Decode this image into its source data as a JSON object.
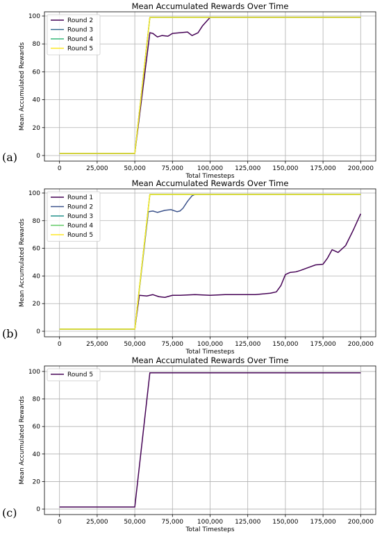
{
  "panels": [
    {
      "letter": "(a)"
    },
    {
      "letter": "(b)"
    },
    {
      "letter": "(c)"
    }
  ],
  "chart_data": [
    {
      "type": "line",
      "title": "Mean Accumulated Rewards Over Time",
      "xlabel": "Total Timesteps",
      "ylabel": "Mean Accumulated Rewards",
      "xlim": [
        -10000,
        210000
      ],
      "ylim": [
        -4,
        103
      ],
      "xticks": [
        0,
        25000,
        50000,
        75000,
        100000,
        125000,
        150000,
        175000,
        200000
      ],
      "xtick_labels": [
        "0",
        "25,000",
        "50,000",
        "75,000",
        "100,000",
        "125,000",
        "150,000",
        "175,000",
        "200,000"
      ],
      "yticks": [
        0,
        20,
        40,
        60,
        80,
        100
      ],
      "ytick_labels": [
        "0",
        "20",
        "40",
        "60",
        "80",
        "100"
      ],
      "grid": true,
      "legend_position": "top-left",
      "series": [
        {
          "name": "Round 2",
          "color": "#440154",
          "x": [
            0,
            50000,
            60000,
            62000,
            65000,
            68000,
            72000,
            75000,
            80000,
            85000,
            88000,
            92000,
            95000,
            100000,
            200000
          ],
          "y": [
            1.5,
            1.5,
            88,
            87.5,
            85,
            86,
            85.5,
            87.5,
            88,
            88.5,
            86,
            88,
            93,
            99,
            99
          ]
        },
        {
          "name": "Round 3",
          "color": "#31688e",
          "x": [
            0,
            50000,
            60000,
            200000
          ],
          "y": [
            1.5,
            1.5,
            99,
            99
          ]
        },
        {
          "name": "Round 4",
          "color": "#35b779",
          "x": [
            0,
            50000,
            60000,
            200000
          ],
          "y": [
            1.5,
            1.5,
            99,
            99
          ]
        },
        {
          "name": "Round 5",
          "color": "#fde725",
          "x": [
            0,
            50000,
            60000,
            200000
          ],
          "y": [
            1.5,
            1.5,
            99,
            99
          ]
        }
      ]
    },
    {
      "type": "line",
      "title": "Mean Accumulated Rewards Over Time",
      "xlabel": "Total Timesteps",
      "ylabel": "Mean Accumulated Rewards",
      "xlim": [
        -10000,
        210000
      ],
      "ylim": [
        -4,
        103
      ],
      "xticks": [
        0,
        25000,
        50000,
        75000,
        100000,
        125000,
        150000,
        175000,
        200000
      ],
      "xtick_labels": [
        "0",
        "25,000",
        "50,000",
        "75,000",
        "100,000",
        "125,000",
        "150,000",
        "175,000",
        "200,000"
      ],
      "yticks": [
        0,
        20,
        40,
        60,
        80,
        100
      ],
      "ytick_labels": [
        "0",
        "20",
        "40",
        "60",
        "80",
        "100"
      ],
      "grid": true,
      "legend_position": "top-left",
      "series": [
        {
          "name": "Round 1",
          "color": "#440154",
          "x": [
            0,
            50000,
            53000,
            58000,
            62000,
            66000,
            70000,
            75000,
            80000,
            90000,
            100000,
            110000,
            120000,
            130000,
            135000,
            140000,
            144000,
            147000,
            150000,
            153000,
            157000,
            160000,
            165000,
            170000,
            175000,
            178000,
            181000,
            185000,
            190000,
            195000,
            200000
          ],
          "y": [
            1.5,
            1.5,
            26,
            25.5,
            26.5,
            25,
            24.5,
            26,
            26,
            26.5,
            26,
            26.5,
            26.5,
            26.5,
            27,
            27.5,
            28.5,
            33,
            41,
            42.5,
            43,
            44,
            46,
            48,
            48.5,
            53,
            59,
            57,
            62,
            73,
            85
          ]
        },
        {
          "name": "Round 2",
          "color": "#3b528b",
          "x": [
            0,
            50000,
            59000,
            62000,
            65000,
            70000,
            74000,
            78000,
            80000,
            82000,
            85000,
            88000,
            90000,
            200000
          ],
          "y": [
            1.5,
            1.5,
            86.5,
            87,
            86,
            87.5,
            88,
            86.5,
            87,
            89,
            94,
            98,
            99,
            99
          ]
        },
        {
          "name": "Round 3",
          "color": "#21918c",
          "x": [
            0,
            50000,
            60000,
            200000
          ],
          "y": [
            1.5,
            1.5,
            99,
            99
          ]
        },
        {
          "name": "Round 4",
          "color": "#5ec962",
          "x": [
            0,
            50000,
            60000,
            200000
          ],
          "y": [
            1.5,
            1.5,
            99,
            99
          ]
        },
        {
          "name": "Round 5",
          "color": "#fde725",
          "x": [
            0,
            50000,
            60000,
            200000
          ],
          "y": [
            1.5,
            1.5,
            99,
            99
          ]
        }
      ]
    },
    {
      "type": "line",
      "title": "Mean Accumulated Rewards Over Time",
      "xlabel": "Total Timesteps",
      "ylabel": "Mean Accumulated Rewards",
      "xlim": [
        -10000,
        210000
      ],
      "ylim": [
        -4,
        104
      ],
      "xticks": [
        0,
        25000,
        50000,
        75000,
        100000,
        125000,
        150000,
        175000,
        200000
      ],
      "xtick_labels": [
        "0",
        "25,000",
        "50,000",
        "75,000",
        "100,000",
        "125,000",
        "150,000",
        "175,000",
        "200,000"
      ],
      "yticks": [
        0,
        20,
        40,
        60,
        80,
        100
      ],
      "ytick_labels": [
        "0",
        "20",
        "40",
        "60",
        "80",
        "100"
      ],
      "grid": true,
      "legend_position": "top-left",
      "series": [
        {
          "name": "Round 5",
          "color": "#440154",
          "x": [
            0,
            50000,
            60000,
            200000
          ],
          "y": [
            1.5,
            1.5,
            99,
            99
          ]
        }
      ]
    }
  ]
}
